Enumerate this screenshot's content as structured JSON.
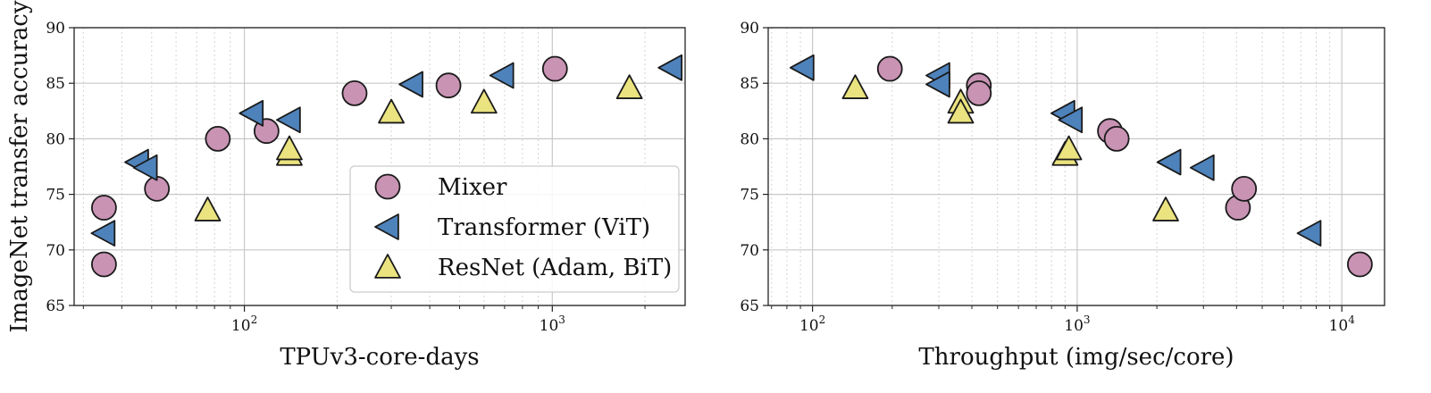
{
  "chart_data": [
    {
      "type": "scatter",
      "xlabel": "TPUv3-core-days",
      "ylabel": "ImageNet transfer accuracy",
      "xscale": "log",
      "xlim": [
        28,
        2700
      ],
      "ylim": [
        65,
        90
      ],
      "yticks": [
        65,
        70,
        75,
        80,
        85,
        90
      ],
      "xticks": [
        {
          "base": "10",
          "exp": "2",
          "value": 100
        },
        {
          "base": "10",
          "exp": "3",
          "value": 1000
        }
      ],
      "grid": true,
      "legend_position": "lower-right",
      "series": [
        {
          "name": "Mixer",
          "marker": "circle",
          "color": "#c993b4",
          "points": [
            [
              35,
              68.7
            ],
            [
              35,
              73.8
            ],
            [
              52,
              75.5
            ],
            [
              82,
              80.0
            ],
            [
              118,
              80.7
            ],
            [
              228,
              84.1
            ],
            [
              460,
              84.8
            ],
            [
              1020,
              86.3
            ]
          ]
        },
        {
          "name": "Transformer (ViT)",
          "marker": "triangle-left",
          "color": "#4e82bb",
          "points": [
            [
              35,
              71.5
            ],
            [
              45,
              77.9
            ],
            [
              48,
              77.4
            ],
            [
              106,
              82.3
            ],
            [
              140,
              81.7
            ],
            [
              350,
              84.9
            ],
            [
              690,
              85.7
            ],
            [
              2430,
              86.4
            ]
          ]
        },
        {
          "name": "ResNet (Adam, BiT)",
          "marker": "triangle-up",
          "color": "#eae37f",
          "points": [
            [
              76,
              73.6
            ],
            [
              140,
              78.6
            ],
            [
              140,
              79.1
            ],
            [
              300,
              82.4
            ],
            [
              600,
              83.3
            ],
            [
              1780,
              84.6
            ]
          ]
        }
      ]
    },
    {
      "type": "scatter",
      "xlabel": "Throughput (img/sec/core)",
      "ylabel": "",
      "xscale": "log",
      "xlim": [
        68,
        14500
      ],
      "ylim": [
        65,
        90
      ],
      "yticks": [
        65,
        70,
        75,
        80,
        85,
        90
      ],
      "xticks": [
        {
          "base": "10",
          "exp": "2",
          "value": 100
        },
        {
          "base": "10",
          "exp": "3",
          "value": 1000
        },
        {
          "base": "10",
          "exp": "4",
          "value": 10000
        }
      ],
      "grid": true,
      "series": [
        {
          "name": "Mixer",
          "marker": "circle",
          "color": "#c993b4",
          "points": [
            [
              196,
              86.3
            ],
            [
              425,
              84.8
            ],
            [
              425,
              84.1
            ],
            [
              1330,
              80.7
            ],
            [
              1410,
              80.0
            ],
            [
              4050,
              73.8
            ],
            [
              4270,
              75.5
            ],
            [
              11700,
              68.7
            ]
          ]
        },
        {
          "name": "Transformer (ViT)",
          "marker": "triangle-left",
          "color": "#4e82bb",
          "points": [
            [
              92,
              86.4
            ],
            [
              300,
              85.7
            ],
            [
              300,
              84.9
            ],
            [
              890,
              82.3
            ],
            [
              950,
              81.7
            ],
            [
              2240,
              77.9
            ],
            [
              2990,
              77.4
            ],
            [
              7580,
              71.5
            ]
          ]
        },
        {
          "name": "ResNet (Adam, BiT)",
          "marker": "triangle-up",
          "color": "#eae37f",
          "points": [
            [
              145,
              84.6
            ],
            [
              363,
              83.3
            ],
            [
              363,
              82.4
            ],
            [
              900,
              78.6
            ],
            [
              930,
              79.1
            ],
            [
              2160,
              73.6
            ]
          ]
        }
      ]
    }
  ],
  "legend": {
    "items": [
      {
        "label": "Mixer",
        "marker": "circle",
        "color": "#c993b4"
      },
      {
        "label": "Transformer (ViT)",
        "marker": "triangle-left",
        "color": "#4e82bb"
      },
      {
        "label": "ResNet (Adam, BiT)",
        "marker": "triangle-up",
        "color": "#eae37f"
      }
    ]
  }
}
